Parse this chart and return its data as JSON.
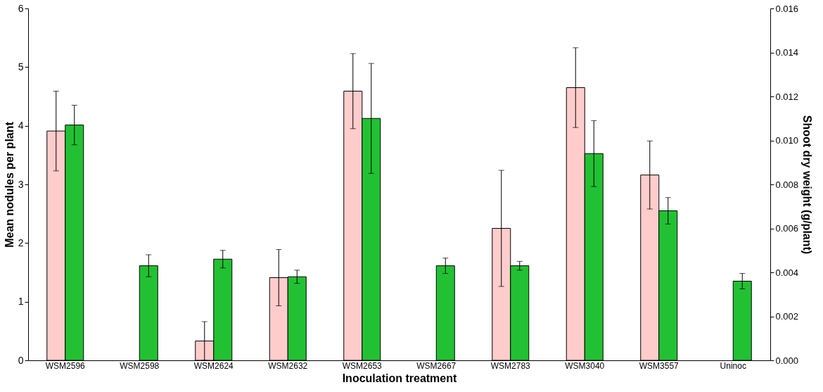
{
  "chart_data": {
    "type": "bar",
    "xlabel": "Inoculation treatment",
    "ylabel": "Mean nodules per plant",
    "y2label": "Shoot dry weight (g/plant)",
    "categories": [
      "WSM2596",
      "WSM2598",
      "WSM2624",
      "WSM2632",
      "WSM2653",
      "WSM2667",
      "WSM2783",
      "WSM3040",
      "WSM3557",
      "Uninoc"
    ],
    "series": [
      {
        "color": "#ffcccc",
        "values": [
          3.91,
          0,
          0.33,
          1.41,
          4.59,
          0,
          2.25,
          4.65,
          3.16,
          0
        ],
        "errors": [
          0.68,
          null,
          0.33,
          0.48,
          0.64,
          null,
          0.99,
          0.68,
          0.58,
          null
        ]
      },
      {
        "color": "#22c133",
        "axis": "y2",
        "values": [
          0.0107,
          0.0043,
          0.0046,
          0.0038,
          0.011,
          0.0043,
          0.0043,
          0.0094,
          0.0068,
          0.0036
        ],
        "errors": [
          0.0009,
          0.0005,
          0.0004,
          0.0003,
          0.0025,
          0.00035,
          0.0002,
          0.0015,
          0.0006,
          0.00035
        ]
      }
    ],
    "ylim": [
      0,
      6
    ],
    "yticks": [
      0,
      1,
      2,
      3,
      4,
      5,
      6
    ],
    "y2lim": [
      0,
      0.016
    ],
    "y2ticks": [
      {
        "value": 0,
        "label": "0.000"
      },
      {
        "value": 0.002,
        "label": "0.002"
      },
      {
        "value": 0.004,
        "label": "0.004"
      },
      {
        "value": 0.006,
        "label": "0.006"
      },
      {
        "value": 0.008,
        "label": "0.008"
      },
      {
        "value": 0.01,
        "label": "0.010"
      },
      {
        "value": 0.012,
        "label": "0.012"
      },
      {
        "value": 0.014,
        "label": "0.014"
      },
      {
        "value": 0.016,
        "label": "0.016"
      }
    ],
    "grid": false
  }
}
